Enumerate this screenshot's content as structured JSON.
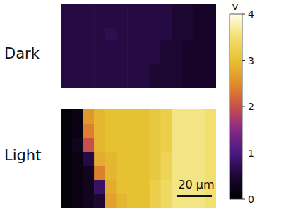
{
  "chart_data": [
    {
      "type": "heatmap",
      "title": "Dark",
      "tick_labels": false,
      "cells": [
        [
          0.6,
          0.6,
          0.6,
          0.6,
          0.6,
          0.6,
          0.6,
          0.6,
          0.6,
          0.6,
          0.5,
          0.5,
          0.4,
          0.4
        ],
        [
          0.6,
          0.6,
          0.6,
          0.6,
          0.6,
          0.6,
          0.6,
          0.6,
          0.6,
          0.6,
          0.5,
          0.5,
          0.4,
          0.4
        ],
        [
          0.6,
          0.6,
          0.6,
          0.6,
          0.7,
          0.6,
          0.6,
          0.6,
          0.6,
          0.6,
          0.5,
          0.5,
          0.4,
          0.4
        ],
        [
          0.6,
          0.6,
          0.6,
          0.6,
          0.6,
          0.6,
          0.6,
          0.6,
          0.6,
          0.5,
          0.5,
          0.4,
          0.4,
          0.4
        ],
        [
          0.6,
          0.6,
          0.6,
          0.6,
          0.6,
          0.6,
          0.6,
          0.6,
          0.6,
          0.5,
          0.5,
          0.4,
          0.4,
          0.4
        ],
        [
          0.6,
          0.6,
          0.6,
          0.6,
          0.6,
          0.6,
          0.6,
          0.6,
          0.5,
          0.5,
          0.5,
          0.4,
          0.4,
          0.4
        ],
        [
          0.6,
          0.6,
          0.6,
          0.6,
          0.6,
          0.6,
          0.6,
          0.6,
          0.5,
          0.5,
          0.5,
          0.4,
          0.4,
          0.4
        ]
      ]
    },
    {
      "type": "heatmap",
      "title": "Light",
      "tick_labels": false,
      "cells": [
        [
          0.1,
          0.2,
          2.6,
          2.9,
          3.0,
          3.0,
          3.0,
          3.0,
          3.1,
          3.2,
          3.6,
          3.6,
          3.6,
          3.5
        ],
        [
          0.1,
          0.2,
          2.4,
          2.9,
          3.0,
          3.0,
          3.0,
          3.0,
          3.1,
          3.2,
          3.6,
          3.6,
          3.6,
          3.5
        ],
        [
          0.1,
          0.3,
          2.0,
          2.9,
          3.0,
          3.0,
          3.0,
          3.0,
          3.1,
          3.2,
          3.6,
          3.6,
          3.6,
          3.5
        ],
        [
          0.1,
          0.2,
          0.6,
          2.8,
          2.9,
          3.0,
          3.0,
          3.0,
          3.1,
          3.3,
          3.6,
          3.6,
          3.6,
          3.5
        ],
        [
          0.1,
          0.2,
          0.3,
          2.4,
          2.9,
          3.0,
          3.0,
          3.0,
          3.1,
          3.3,
          3.6,
          3.6,
          3.6,
          3.5
        ],
        [
          0.1,
          0.2,
          0.3,
          0.8,
          2.8,
          3.0,
          3.0,
          3.0,
          3.2,
          3.4,
          3.6,
          3.6,
          3.6,
          3.5
        ],
        [
          0.1,
          0.2,
          0.3,
          0.5,
          2.7,
          2.9,
          3.0,
          3.0,
          3.2,
          3.4,
          3.6,
          3.6,
          3.6,
          3.5
        ]
      ],
      "scale_bar": {
        "label": "20 µm"
      },
      "colorbar": {
        "label": "V",
        "range": [
          0,
          4
        ],
        "ticks": [
          0,
          1,
          2,
          3,
          4
        ]
      }
    }
  ]
}
